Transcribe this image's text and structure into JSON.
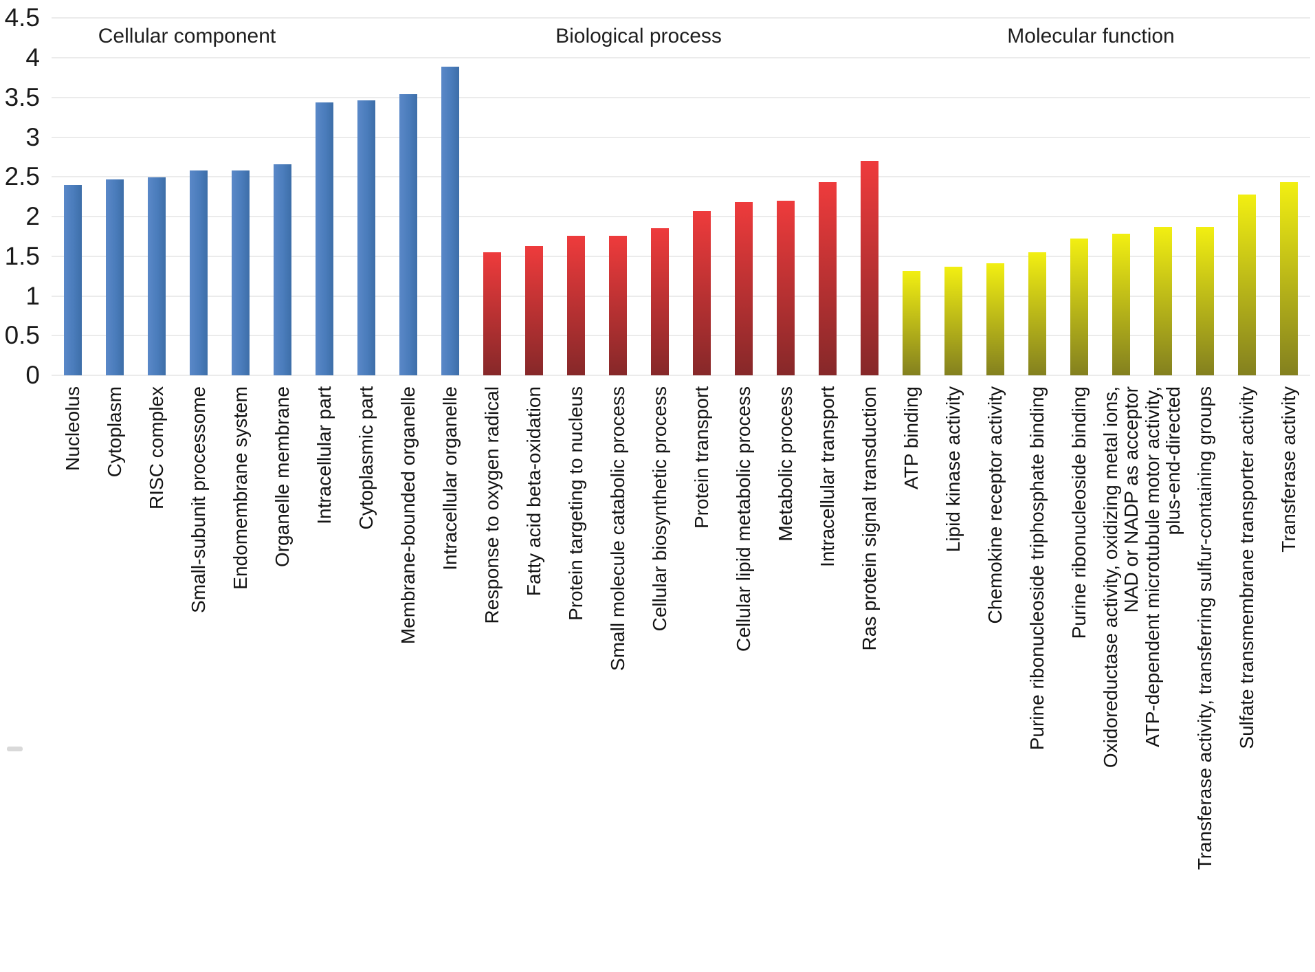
{
  "chart_data": {
    "type": "bar",
    "title": "",
    "xlabel": "",
    "ylabel": "",
    "ylim": [
      0,
      4.5
    ],
    "ytick_step": 0.5,
    "yticks": [
      "4.5",
      "4",
      "3.5",
      "3",
      "2.5",
      "2",
      "1.5",
      "1",
      "0.5",
      "0"
    ],
    "grid": "horizontal-light-gray",
    "legend_position": "none",
    "x_label_rotation_degrees": 90,
    "groups": [
      {
        "title": "Cellular component",
        "bar_style": {
          "direction": "90deg",
          "stops": [
            "#5a88c8",
            "#4a7cbb 55%",
            "#3d6ea8"
          ]
        },
        "items": [
          {
            "label": "Nucleolus",
            "value": 2.4
          },
          {
            "label": "Cytoplasm",
            "value": 2.47
          },
          {
            "label": "RISC complex",
            "value": 2.49
          },
          {
            "label": "Small-subunit processome",
            "value": 2.58
          },
          {
            "label": "Endomembrane system",
            "value": 2.58
          },
          {
            "label": "Organelle membrane",
            "value": 2.66
          },
          {
            "label": "Intracellular part",
            "value": 3.44
          },
          {
            "label": "Cytoplasmic part",
            "value": 3.46
          },
          {
            "label": "Membrane-bounded organelle",
            "value": 3.54
          },
          {
            "label": "Intracellular organelle",
            "value": 3.89
          }
        ]
      },
      {
        "title": "Biological process",
        "bar_style": {
          "direction": "180deg",
          "stops": [
            "#ee3b3c",
            "#862829"
          ]
        },
        "items": [
          {
            "label": "Response to oxygen radical",
            "value": 1.55
          },
          {
            "label": "Fatty acid beta-oxidation",
            "value": 1.63
          },
          {
            "label": "Protein targeting to nucleus",
            "value": 1.76
          },
          {
            "label": "Small molecule catabolic process",
            "value": 1.76
          },
          {
            "label": "Cellular biosynthetic process",
            "value": 1.85
          },
          {
            "label": "Protein transport",
            "value": 2.07
          },
          {
            "label": "Cellular lipid metabolic process",
            "value": 2.18
          },
          {
            "label": "Metabolic process",
            "value": 2.2
          },
          {
            "label": "Intracellular transport",
            "value": 2.43
          },
          {
            "label": "Ras protein signal transduction",
            "value": 2.7
          }
        ]
      },
      {
        "title": "Molecular function",
        "bar_style": {
          "direction": "180deg",
          "stops": [
            "#f2ef12",
            "#83801f"
          ]
        },
        "items": [
          {
            "label": "ATP binding",
            "value": 1.32
          },
          {
            "label": "Lipid kinase activity",
            "value": 1.37
          },
          {
            "label": "Chemokine receptor activity",
            "value": 1.41
          },
          {
            "label": "Purine ribonucleoside triphosphate binding",
            "value": 1.55
          },
          {
            "label": "Purine ribonucleoside binding",
            "value": 1.72
          },
          {
            "label": "Oxidoreductase activity, oxidizing metal ions,\nNAD or NADP as acceptor",
            "value": 1.78
          },
          {
            "label": "ATP-dependent microtubule motor activity,\nplus-end-directed",
            "value": 1.87
          },
          {
            "label": "Transferase activity, transferring sulfur-containing groups",
            "value": 1.87
          },
          {
            "label": "Sulfate transmembrane transporter activity",
            "value": 2.28
          },
          {
            "label": "Transferase activity",
            "value": 2.43
          }
        ]
      }
    ]
  },
  "colors": {
    "background": "#ffffff",
    "gridline": "#ebebeb",
    "text": "#1a1a1a",
    "blue_bar": "#4a7cbb",
    "red_bar_top": "#ee3b3c",
    "red_bar_bottom": "#862829",
    "yellow_bar_top": "#f2ef12",
    "yellow_bar_bottom": "#83801f"
  }
}
